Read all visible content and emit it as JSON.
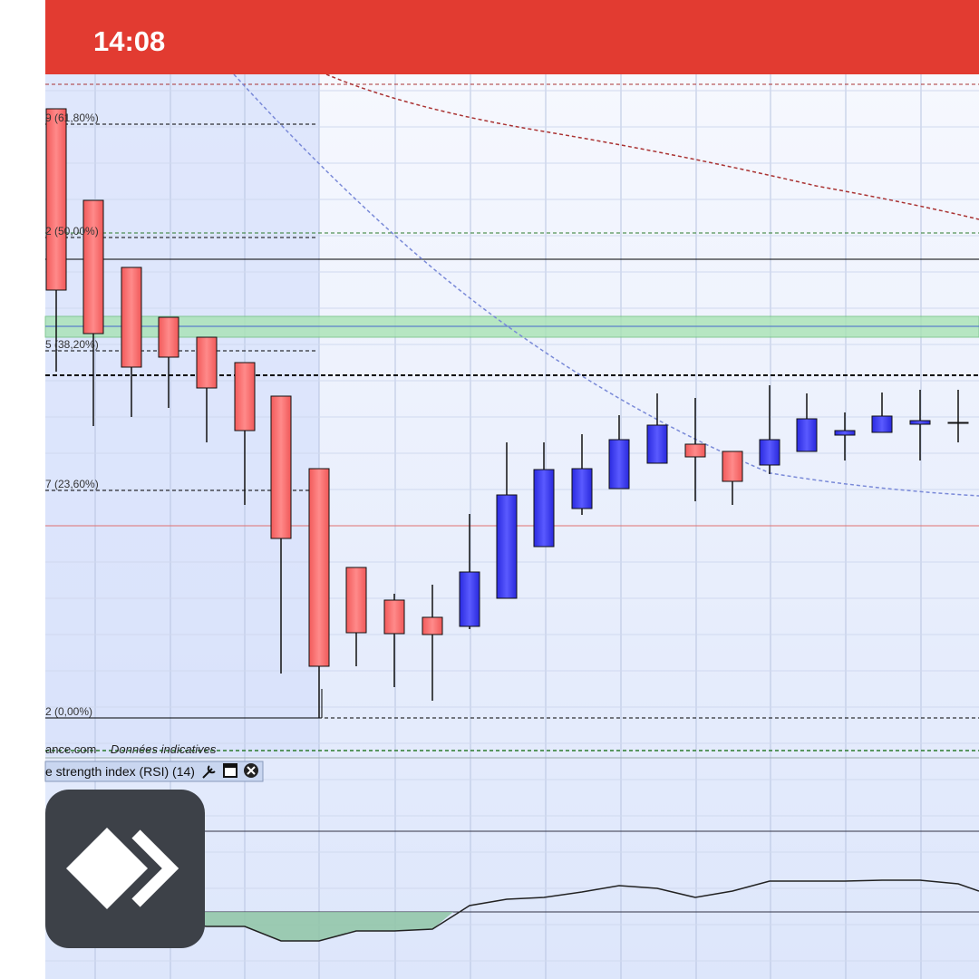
{
  "status_bar": {
    "time": "14:08"
  },
  "chart": {
    "fib_labels": [
      "9 (61,80%)",
      "2 (50,00%)",
      "5 (38,20%)",
      "7 (23,60%)",
      "2 (0,00%)"
    ],
    "source": "ance.com",
    "disclaimer": "Données indicatives",
    "indicator": {
      "label": "e strength index (RSI) (14)"
    }
  }
}
